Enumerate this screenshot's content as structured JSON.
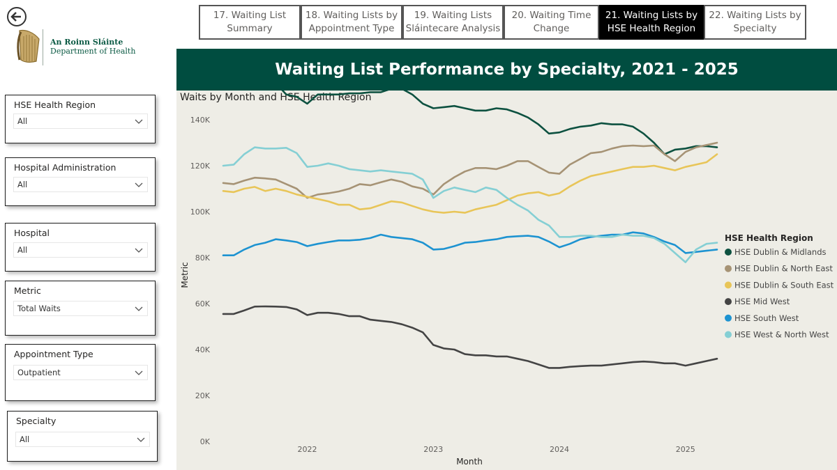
{
  "header": {
    "back_icon": "back-arrow-icon",
    "logo_icon": "harp-icon",
    "department_irish": "An Roinn Sláinte",
    "department_english": "Department of Health"
  },
  "nav": {
    "tabs": [
      {
        "line1": "17. Waiting List",
        "line2": "Summary",
        "active": false
      },
      {
        "line1": "18. Waiting Lists by",
        "line2": "Appointment Type",
        "active": false
      },
      {
        "line1": "19. Waiting Lists",
        "line2": "Sláintecare Analysis",
        "active": false
      },
      {
        "line1": "20. Waiting Time",
        "line2": "Change",
        "active": false
      },
      {
        "line1": "21. Waiting Lists by",
        "line2": "HSE Health Region",
        "active": true
      },
      {
        "line1": "22. Waiting Lists by",
        "line2": "Specialty",
        "active": false
      }
    ]
  },
  "filters": [
    {
      "label": "HSE Health Region",
      "value": "All"
    },
    {
      "label": "Hospital Administration",
      "value": "All"
    },
    {
      "label": "Hospital",
      "value": "All"
    },
    {
      "label": "Metric",
      "value": "Total Waits"
    },
    {
      "label": "Appointment Type",
      "value": "Outpatient"
    },
    {
      "label": "Specialty",
      "value": "All"
    }
  ],
  "page_title": "Waiting List Performance by Specialty, 2021 - 2025",
  "colors": {
    "banner": "#004d40",
    "chart_bg": "#eeede6",
    "active_tab": "#000000"
  },
  "chart_data": {
    "type": "line",
    "title": "Waits by Month and HSE Health Region",
    "xlabel": "Month",
    "ylabel": "Metric",
    "ylim": [
      0,
      150000
    ],
    "yticks": [
      0,
      20000,
      40000,
      60000,
      80000,
      100000,
      120000,
      140000
    ],
    "ytick_labels": [
      "0K",
      "20K",
      "40K",
      "60K",
      "80K",
      "100K",
      "120K",
      "140K"
    ],
    "xticks": [
      "2022",
      "2023",
      "2024",
      "2025"
    ],
    "x_start": "2021-05",
    "grid": false,
    "legend_title": "HSE Health Region",
    "legend_position": "right",
    "series": [
      {
        "name": "HSE Dublin & Midlands",
        "color": "#0d5140",
        "values": [
          154000,
          154000,
          155000,
          156000,
          157000,
          156000,
          151000,
          150000,
          147000,
          151000,
          151000,
          151000,
          151500,
          151500,
          152000,
          152000,
          153500,
          153500,
          151000,
          147000,
          145000,
          145500,
          146000,
          145000,
          144000,
          144000,
          145000,
          144500,
          143000,
          141000,
          138000,
          134000,
          134500,
          136000,
          137000,
          137500,
          138500,
          138000,
          138000,
          137000,
          134000,
          130000,
          125000,
          127000,
          127500,
          128500,
          128500,
          128000
        ]
      },
      {
        "name": "HSE Dublin & North East",
        "color": "#a69375",
        "values": [
          112500,
          112000,
          113500,
          114800,
          114500,
          114000,
          112000,
          110000,
          106000,
          107500,
          108000,
          108800,
          110000,
          112000,
          111500,
          112800,
          114000,
          113000,
          111000,
          110000,
          107500,
          112000,
          115000,
          117500,
          119000,
          119000,
          118500,
          120000,
          122000,
          122000,
          119500,
          117000,
          116500,
          120500,
          123000,
          125500,
          126000,
          127500,
          128500,
          128800,
          128500,
          128800,
          125000,
          122000,
          126000,
          128000,
          129000,
          130000
        ]
      },
      {
        "name": "HSE Dublin & South East",
        "color": "#e8c558",
        "values": [
          109000,
          108500,
          110000,
          110800,
          109000,
          110000,
          109000,
          107500,
          106500,
          105500,
          104500,
          103000,
          103000,
          101000,
          101500,
          103000,
          104500,
          104000,
          102500,
          101000,
          100000,
          99500,
          100000,
          99500,
          101000,
          102000,
          103000,
          105000,
          107000,
          108000,
          108500,
          107000,
          108000,
          111000,
          113500,
          115500,
          116500,
          117500,
          118500,
          119500,
          119500,
          120000,
          119000,
          118000,
          119500,
          120500,
          121500,
          125000
        ]
      },
      {
        "name": "HSE Mid West",
        "color": "#444444",
        "values": [
          55500,
          55500,
          57000,
          58700,
          58800,
          58700,
          58500,
          57500,
          55000,
          56000,
          56000,
          55500,
          54500,
          54500,
          53000,
          52500,
          52000,
          51000,
          49500,
          47500,
          42000,
          40500,
          40000,
          38000,
          37500,
          37500,
          37000,
          37000,
          36000,
          35000,
          33500,
          32000,
          32000,
          32500,
          32800,
          33000,
          33000,
          33500,
          34000,
          34500,
          34800,
          34500,
          34000,
          34000,
          33000,
          34000,
          35000,
          36000
        ]
      },
      {
        "name": "HSE South West",
        "color": "#1d93d1",
        "values": [
          81000,
          81000,
          83500,
          85500,
          86500,
          88000,
          87500,
          86800,
          85000,
          86000,
          86800,
          87500,
          87500,
          87800,
          88500,
          90000,
          89000,
          88500,
          88000,
          86500,
          83500,
          83800,
          85000,
          86500,
          86800,
          87500,
          88000,
          89000,
          89300,
          89500,
          89000,
          87000,
          84500,
          86000,
          88000,
          89000,
          89500,
          90000,
          90000,
          91000,
          90500,
          89000,
          87000,
          85500,
          82000,
          82500,
          83000,
          83500
        ]
      },
      {
        "name": "HSE West & North West",
        "color": "#85cfd4",
        "values": [
          120000,
          120500,
          125000,
          128000,
          127500,
          127500,
          127800,
          125500,
          119500,
          120000,
          121000,
          120000,
          118500,
          118000,
          117500,
          118000,
          117500,
          117000,
          116500,
          114000,
          106000,
          109000,
          110500,
          109500,
          108500,
          110500,
          109500,
          106000,
          103000,
          100500,
          96500,
          94000,
          89000,
          89000,
          89500,
          89500,
          89000,
          89000,
          90000,
          89500,
          89500,
          88500,
          86000,
          82000,
          78000,
          83500,
          86000,
          86500
        ]
      }
    ]
  }
}
